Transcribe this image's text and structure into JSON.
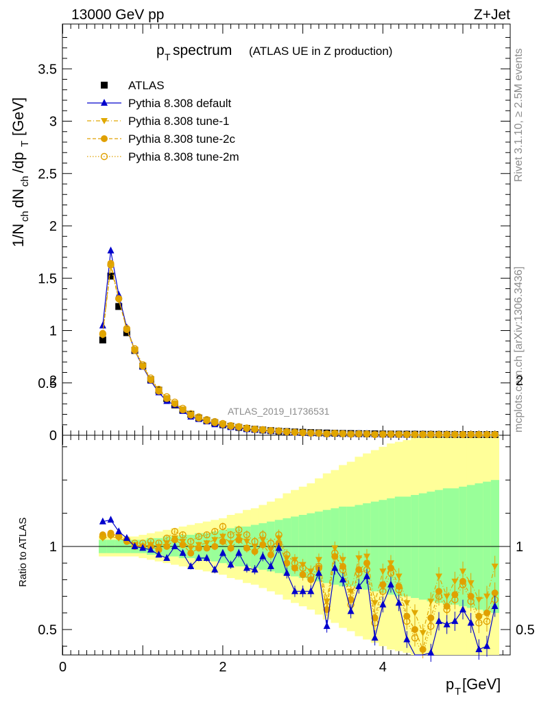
{
  "header": {
    "energy": "13000 GeV pp",
    "process": "Z+Jet"
  },
  "side": {
    "rivet": "Rivet 3.1.10, ≥ 2.5M events",
    "mcplots": "mcplots.cern.ch [arXiv:1306.3436]"
  },
  "chart_data": {
    "type": "scatter",
    "title_main": "p",
    "title_sub": "T",
    "title_rest": " spectrum",
    "title_paren": "(ATLAS UE in Z production)",
    "analysis_id": "ATLAS_2019_I1736531",
    "ylabel_main": "1/N",
    "xlabel": "p",
    "xlabel_sub": "T",
    "xlabel_unit": " [GeV]",
    "ratio_ylabel": "Ratio to ATLAS",
    "xlim": [
      0,
      5.5
    ],
    "ylim": [
      0,
      3.9
    ],
    "ratio_ylim": [
      0.35,
      2.25
    ],
    "x_ticks": [
      "0",
      "2",
      "4"
    ],
    "y_ticks": [
      "0",
      "0.5",
      "1",
      "1.5",
      "2",
      "2.5",
      "3",
      "3.5"
    ],
    "ratio_ticks": [
      "0.5",
      "1",
      "2"
    ],
    "x": [
      0.5,
      0.6,
      0.7,
      0.8,
      0.9,
      1.0,
      1.1,
      1.2,
      1.3,
      1.4,
      1.5,
      1.6,
      1.7,
      1.8,
      1.9,
      2.0,
      2.1,
      2.2,
      2.3,
      2.4,
      2.5,
      2.6,
      2.7,
      2.8,
      2.9,
      3.0,
      3.1,
      3.2,
      3.3,
      3.4,
      3.5,
      3.6,
      3.7,
      3.8,
      3.9,
      4.0,
      4.1,
      4.2,
      4.3,
      4.4,
      4.5,
      4.6,
      4.7,
      4.8,
      4.9,
      5.0,
      5.1,
      5.2,
      5.3,
      5.4
    ],
    "data": [
      0.91,
      1.52,
      1.23,
      0.98,
      0.81,
      0.66,
      0.53,
      0.43,
      0.35,
      0.29,
      0.24,
      0.2,
      0.165,
      0.14,
      0.12,
      0.1,
      0.086,
      0.075,
      0.065,
      0.057,
      0.05,
      0.044,
      0.039,
      0.035,
      0.031,
      0.028,
      0.025,
      0.023,
      0.021,
      0.019,
      0.017,
      0.016,
      0.015,
      0.014,
      0.013,
      0.012,
      0.011,
      0.0105,
      0.01,
      0.0095,
      0.009,
      0.0085,
      0.008,
      0.0076,
      0.0072,
      0.0068,
      0.0065,
      0.0062,
      0.006,
      0.0058
    ],
    "band_inner": [
      0.04,
      0.04,
      0.04,
      0.04,
      0.04,
      0.04,
      0.05,
      0.05,
      0.06,
      0.06,
      0.07,
      0.07,
      0.08,
      0.08,
      0.09,
      0.1,
      0.11,
      0.12,
      0.12,
      0.13,
      0.14,
      0.15,
      0.16,
      0.17,
      0.18,
      0.19,
      0.2,
      0.21,
      0.22,
      0.23,
      0.24,
      0.24,
      0.25,
      0.26,
      0.27,
      0.28,
      0.29,
      0.3,
      0.3,
      0.31,
      0.32,
      0.33,
      0.34,
      0.35,
      0.35,
      0.36,
      0.37,
      0.38,
      0.39,
      0.4
    ],
    "band_outer": [
      0.06,
      0.06,
      0.06,
      0.06,
      0.06,
      0.07,
      0.08,
      0.09,
      0.1,
      0.11,
      0.12,
      0.13,
      0.14,
      0.15,
      0.16,
      0.17,
      0.19,
      0.2,
      0.22,
      0.23,
      0.25,
      0.27,
      0.29,
      0.32,
      0.34,
      0.36,
      0.38,
      0.41,
      0.44,
      0.46,
      0.49,
      0.51,
      0.54,
      0.56,
      0.58,
      0.6,
      0.62,
      0.63,
      0.64,
      0.68,
      0.7,
      0.72,
      0.74,
      0.75,
      0.76,
      0.77,
      0.78,
      0.79,
      0.8,
      0.82
    ],
    "series": [
      {
        "name": "ATLAS",
        "color": "#000000",
        "marker": "square",
        "ratio": [
          1,
          1,
          1,
          1,
          1,
          1,
          1,
          1,
          1,
          1,
          1,
          1,
          1,
          1,
          1,
          1,
          1,
          1,
          1,
          1,
          1,
          1,
          1,
          1,
          1,
          1,
          1,
          1,
          1,
          1,
          1,
          1,
          1,
          1,
          1,
          1,
          1,
          1,
          1,
          1,
          1,
          1,
          1,
          1,
          1,
          1,
          1,
          1,
          1,
          1
        ]
      },
      {
        "name": "Pythia 8.308 default",
        "color": "#0000cc",
        "marker": "triangle-up",
        "line": "solid",
        "ratio": [
          1.15,
          1.16,
          1.09,
          1.05,
          1.0,
          0.99,
          0.98,
          0.95,
          0.93,
          1.0,
          0.96,
          0.88,
          0.93,
          0.93,
          0.86,
          0.96,
          0.89,
          0.96,
          0.87,
          0.86,
          0.94,
          0.88,
          0.99,
          0.84,
          0.73,
          0.73,
          0.73,
          0.84,
          0.52,
          0.87,
          0.8,
          0.61,
          0.76,
          0.82,
          0.45,
          0.65,
          0.77,
          0.66,
          0.44,
          0.32,
          0.22,
          0.36,
          0.55,
          0.53,
          0.55,
          0.62,
          0.54,
          0.38,
          0.4,
          0.64
        ]
      },
      {
        "name": "Pythia 8.308 tune-1",
        "color": "#e0a800",
        "marker": "triangle-down",
        "line": "dashdot",
        "ratio": [
          1.05,
          1.06,
          1.05,
          1.03,
          1.01,
          1.0,
          1.01,
          1.0,
          1.02,
          1.05,
          1.03,
          0.99,
          1.01,
          1.02,
          1.04,
          1.06,
          1.02,
          1.06,
          1.03,
          1.0,
          1.04,
          0.98,
          1.05,
          0.93,
          0.92,
          0.89,
          0.85,
          0.92,
          0.67,
          0.99,
          0.92,
          0.73,
          0.93,
          0.94,
          0.66,
          0.85,
          0.9,
          0.82,
          0.66,
          0.6,
          0.48,
          0.67,
          0.82,
          0.7,
          0.79,
          0.85,
          0.78,
          0.68,
          0.7,
          0.88
        ]
      },
      {
        "name": "Pythia 8.308 tune-2c",
        "color": "#e0a000",
        "marker": "circle-filled",
        "line": "dashed",
        "ratio": [
          1.07,
          1.08,
          1.06,
          1.03,
          1.0,
          1.0,
          1.0,
          0.98,
          1.0,
          1.04,
          1.01,
          0.96,
          0.99,
          0.99,
          1.0,
          1.03,
          0.99,
          1.04,
          0.99,
          0.97,
          1.01,
          0.95,
          1.02,
          0.9,
          0.87,
          0.83,
          0.8,
          0.87,
          0.62,
          0.94,
          0.88,
          0.68,
          0.86,
          0.9,
          0.57,
          0.77,
          0.87,
          0.76,
          0.58,
          0.5,
          0.38,
          0.57,
          0.73,
          0.64,
          0.71,
          0.79,
          0.7,
          0.58,
          0.6,
          0.72
        ]
      },
      {
        "name": "Pythia 8.308 tune-2m",
        "color": "#e0a000",
        "marker": "circle-open",
        "line": "dotted",
        "ratio": [
          1.06,
          1.07,
          1.06,
          1.04,
          1.02,
          1.02,
          1.03,
          1.02,
          1.05,
          1.09,
          1.07,
          1.03,
          1.06,
          1.07,
          1.09,
          1.12,
          1.07,
          1.1,
          1.07,
          1.03,
          1.07,
          1.02,
          1.07,
          0.95,
          0.9,
          0.87,
          0.82,
          0.88,
          0.64,
          0.96,
          0.86,
          0.65,
          0.84,
          0.86,
          0.54,
          0.73,
          0.84,
          0.74,
          0.55,
          0.45,
          0.33,
          0.52,
          0.7,
          0.62,
          0.68,
          0.77,
          0.67,
          0.54,
          0.55,
          0.68
        ]
      }
    ],
    "legend_position": "top-left"
  }
}
